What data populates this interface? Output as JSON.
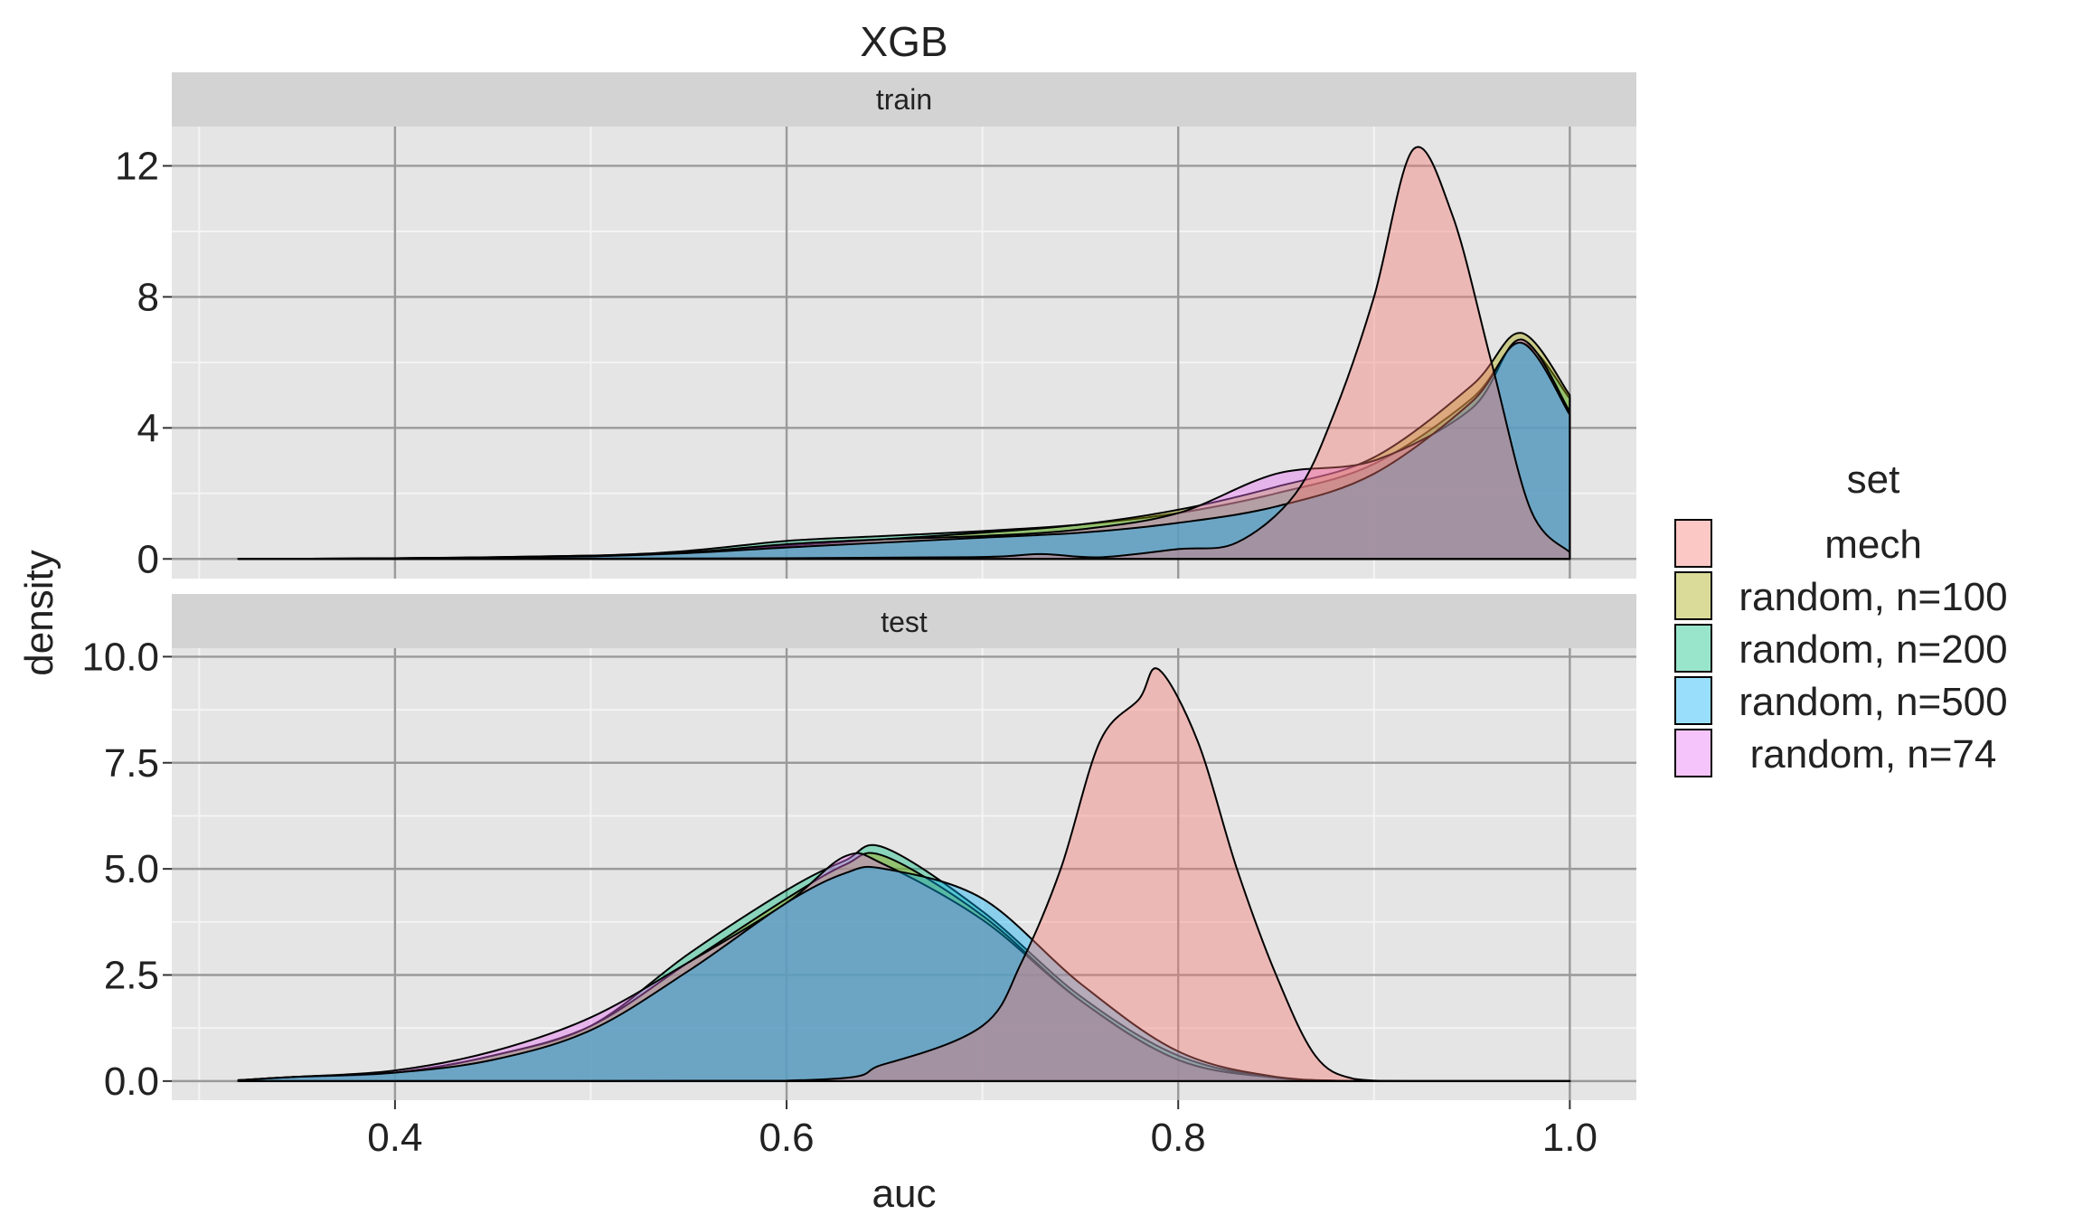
{
  "chart_data": {
    "type": "area",
    "title": "XGB",
    "xlabel": "auc",
    "ylabel": "density",
    "xlim": [
      0.286,
      1.034
    ],
    "x_ticks": [
      {
        "value": 0.4,
        "label": "0.4"
      },
      {
        "value": 0.6,
        "label": "0.6"
      },
      {
        "value": 0.8,
        "label": "0.8"
      },
      {
        "value": 1.0,
        "label": "1.0"
      }
    ],
    "grid": true,
    "legend": {
      "title": "set",
      "placement": "right",
      "entries": [
        "mech",
        "random, n=100",
        "random, n=200",
        "random, n=500",
        "random, n=74"
      ]
    },
    "colors": {
      "mech": "#F8766D",
      "random, n=100": "#A3A500",
      "random, n=200": "#00BF7D",
      "random, n=500": "#00B0F6",
      "random, n=74": "#E76BF3"
    },
    "panels": [
      {
        "strip": "train",
        "ylim": [
          -0.6,
          13.2
        ],
        "y_ticks": [
          {
            "value": 0,
            "label": "0"
          },
          {
            "value": 4,
            "label": "4"
          },
          {
            "value": 8,
            "label": "8"
          },
          {
            "value": 12,
            "label": "12"
          }
        ],
        "series": [
          {
            "name": "random, n=200",
            "x": [
              0.32,
              0.4,
              0.5,
              0.55,
              0.6,
              0.65,
              0.7,
              0.75,
              0.8,
              0.85,
              0.9,
              0.95,
              0.975,
              1.0
            ],
            "y": [
              0,
              0.02,
              0.1,
              0.25,
              0.55,
              0.7,
              0.85,
              1.05,
              1.4,
              2.0,
              2.9,
              4.9,
              6.6,
              4.9
            ]
          },
          {
            "name": "random, n=100",
            "x": [
              0.32,
              0.4,
              0.5,
              0.55,
              0.6,
              0.65,
              0.7,
              0.75,
              0.8,
              0.85,
              0.9,
              0.95,
              0.975,
              1.0
            ],
            "y": [
              0,
              0.02,
              0.08,
              0.2,
              0.4,
              0.6,
              0.8,
              1.05,
              1.5,
              2.2,
              3.1,
              5.3,
              6.9,
              5.0
            ]
          },
          {
            "name": "random, n=74",
            "x": [
              0.32,
              0.4,
              0.5,
              0.55,
              0.6,
              0.65,
              0.7,
              0.75,
              0.8,
              0.85,
              0.9,
              0.95,
              0.975,
              1.0
            ],
            "y": [
              0,
              0.02,
              0.1,
              0.2,
              0.45,
              0.6,
              0.7,
              0.9,
              1.4,
              2.6,
              3.0,
              4.6,
              6.7,
              4.5
            ]
          },
          {
            "name": "random, n=500",
            "x": [
              0.32,
              0.4,
              0.5,
              0.55,
              0.6,
              0.65,
              0.7,
              0.75,
              0.8,
              0.85,
              0.9,
              0.95,
              0.975,
              1.0
            ],
            "y": [
              0,
              0.02,
              0.08,
              0.18,
              0.35,
              0.5,
              0.65,
              0.8,
              1.1,
              1.6,
              2.6,
              4.8,
              6.6,
              4.4
            ]
          },
          {
            "name": "mech",
            "x": [
              0.32,
              0.6,
              0.7,
              0.73,
              0.76,
              0.8,
              0.83,
              0.86,
              0.88,
              0.9,
              0.92,
              0.94,
              0.96,
              0.98,
              1.0
            ],
            "y": [
              0,
              0.02,
              0.06,
              0.15,
              0.05,
              0.3,
              0.5,
              2.0,
              4.5,
              8.0,
              12.5,
              10.5,
              6.0,
              1.5,
              0.2
            ]
          }
        ]
      },
      {
        "strip": "test",
        "ylim": [
          -0.45,
          10.2
        ],
        "y_ticks": [
          {
            "value": 0.0,
            "label": "0.0"
          },
          {
            "value": 2.5,
            "label": "2.5"
          },
          {
            "value": 5.0,
            "label": "5.0"
          },
          {
            "value": 7.5,
            "label": "7.5"
          },
          {
            "value": 10.0,
            "label": "10.0"
          }
        ],
        "series": [
          {
            "name": "random, n=200",
            "x": [
              0.32,
              0.35,
              0.4,
              0.45,
              0.5,
              0.55,
              0.6,
              0.63,
              0.65,
              0.7,
              0.75,
              0.8,
              0.85,
              0.9,
              1.0
            ],
            "y": [
              0.02,
              0.1,
              0.2,
              0.6,
              1.3,
              3.0,
              4.5,
              5.2,
              5.5,
              4.0,
              2.0,
              0.6,
              0.08,
              0.0,
              0.0
            ]
          },
          {
            "name": "random, n=100",
            "x": [
              0.32,
              0.35,
              0.4,
              0.45,
              0.5,
              0.55,
              0.6,
              0.63,
              0.65,
              0.7,
              0.75,
              0.8,
              0.85,
              0.9,
              1.0
            ],
            "y": [
              0.02,
              0.1,
              0.2,
              0.6,
              1.3,
              2.8,
              4.3,
              5.1,
              5.3,
              3.9,
              1.9,
              0.5,
              0.08,
              0.0,
              0.0
            ]
          },
          {
            "name": "random, n=74",
            "x": [
              0.32,
              0.35,
              0.4,
              0.45,
              0.5,
              0.55,
              0.6,
              0.63,
              0.65,
              0.7,
              0.75,
              0.8,
              0.85,
              0.9,
              1.0
            ],
            "y": [
              0.02,
              0.1,
              0.25,
              0.7,
              1.5,
              2.8,
              4.2,
              5.3,
              5.1,
              3.8,
              1.9,
              0.5,
              0.08,
              0.0,
              0.0
            ]
          },
          {
            "name": "random, n=500",
            "x": [
              0.32,
              0.35,
              0.4,
              0.45,
              0.5,
              0.55,
              0.6,
              0.63,
              0.65,
              0.7,
              0.75,
              0.8,
              0.85,
              0.9,
              1.0
            ],
            "y": [
              0.02,
              0.1,
              0.2,
              0.5,
              1.2,
              2.6,
              4.2,
              4.9,
              5.0,
              4.3,
              2.3,
              0.7,
              0.1,
              0.0,
              0.0
            ]
          },
          {
            "name": "mech",
            "x": [
              0.32,
              0.6,
              0.65,
              0.7,
              0.72,
              0.74,
              0.76,
              0.78,
              0.79,
              0.81,
              0.83,
              0.85,
              0.87,
              0.89,
              0.92,
              1.0
            ],
            "y": [
              0,
              0.01,
              0.4,
              1.3,
              2.8,
              5.0,
              8.0,
              9.0,
              9.7,
              8.0,
              5.0,
              2.5,
              0.6,
              0.05,
              0.0,
              0.0
            ]
          }
        ]
      }
    ]
  }
}
